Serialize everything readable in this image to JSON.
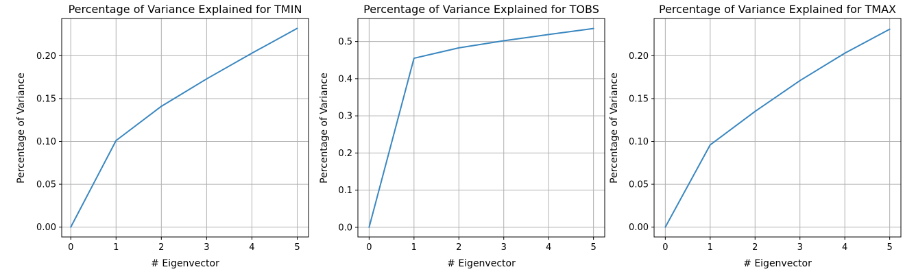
{
  "figure": {
    "series_color": "#3a87c0",
    "grid": true
  },
  "chart_data": [
    {
      "type": "line",
      "title": "Percentage of Variance Explained for TMIN",
      "xlabel": "# Eigenvector",
      "ylabel": "Percentage of Variance",
      "x": [
        0,
        1,
        2,
        3,
        4,
        5
      ],
      "xlim": [
        -0.2,
        5.25
      ],
      "ylim": [
        -0.0115,
        0.2435
      ],
      "xticks": [
        0,
        1,
        2,
        3,
        4,
        5
      ],
      "yticks": [
        0.0,
        0.05,
        0.1,
        0.15,
        0.2
      ],
      "ytick_labels": [
        "0.00",
        "0.05",
        "0.10",
        "0.15",
        "0.20"
      ],
      "series": [
        {
          "values": [
            0.0,
            0.101,
            0.141,
            0.173,
            0.203,
            0.232
          ]
        }
      ]
    },
    {
      "type": "line",
      "title": "Percentage of Variance Explained for TOBS",
      "xlabel": "# Eigenvector",
      "ylabel": "Percentage of Variance",
      "x": [
        0,
        1,
        2,
        3,
        4,
        5
      ],
      "xlim": [
        -0.25,
        5.25
      ],
      "ylim": [
        -0.026,
        0.562
      ],
      "xticks": [
        0,
        1,
        2,
        3,
        4,
        5
      ],
      "yticks": [
        0.0,
        0.1,
        0.2,
        0.3,
        0.4,
        0.5
      ],
      "ytick_labels": [
        "0.0",
        "0.1",
        "0.2",
        "0.3",
        "0.4",
        "0.5"
      ],
      "series": [
        {
          "values": [
            0.0,
            0.455,
            0.483,
            0.502,
            0.519,
            0.535
          ]
        }
      ]
    },
    {
      "type": "line",
      "title": "Percentage of Variance Explained for TMAX",
      "xlabel": "# Eigenvector",
      "ylabel": "Percentage of Variance",
      "x": [
        0,
        1,
        2,
        3,
        4,
        5
      ],
      "xlim": [
        -0.25,
        5.25
      ],
      "ylim": [
        -0.0115,
        0.2435
      ],
      "xticks": [
        0,
        1,
        2,
        3,
        4,
        5
      ],
      "yticks": [
        0.0,
        0.05,
        0.1,
        0.15,
        0.2
      ],
      "ytick_labels": [
        "0.00",
        "0.05",
        "0.10",
        "0.15",
        "0.20"
      ],
      "series": [
        {
          "values": [
            0.0,
            0.096,
            0.135,
            0.171,
            0.203,
            0.231
          ]
        }
      ]
    }
  ]
}
